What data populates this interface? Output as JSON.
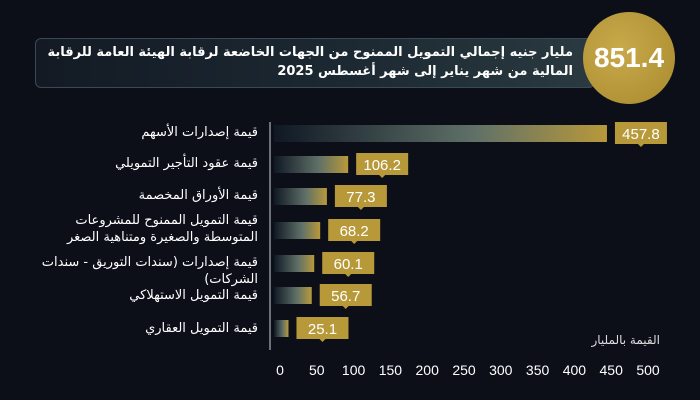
{
  "chart_data": {
    "type": "bar",
    "orientation": "horizontal",
    "title": "مليار جنيه إجمالي التمويل الممنوح من الجهات الخاضعة لرقابة الهيئة العامة للرقابة المالية من شهر يناير إلى شهر أغسطس 2025",
    "total": "851.4",
    "categories": [
      "قيمة إصدارات الأسهم",
      "قيمة عقود التأجير التمويلي",
      "قيمة الأوراق المخصمة",
      "قيمة التمويل الممنوح للمشروعات المتوسطة والصغيرة ومتناهية الصغر",
      "قيمة إصدارات (سندات التوريق - سندات الشركات)",
      "قيمة التمويل الاستهلاكي",
      "قيمة التمويل العقاري"
    ],
    "values": [
      457.8,
      106.2,
      77.3,
      68.2,
      60.1,
      56.7,
      25.1
    ],
    "value_labels": [
      "457.8",
      "106.2",
      "77.3",
      "68.2",
      "60.1",
      "56.7",
      "25.1"
    ],
    "xlabel": "القيمة بالمليار",
    "xlim": [
      0,
      500
    ],
    "xticks": [
      "0",
      "50",
      "100",
      "150",
      "200",
      "250",
      "300",
      "350",
      "400",
      "450",
      "500"
    ],
    "grid": false,
    "colors": {
      "accent": "#b8993a",
      "bar_start": "#1a2a38",
      "background": "#0c0e18"
    }
  }
}
